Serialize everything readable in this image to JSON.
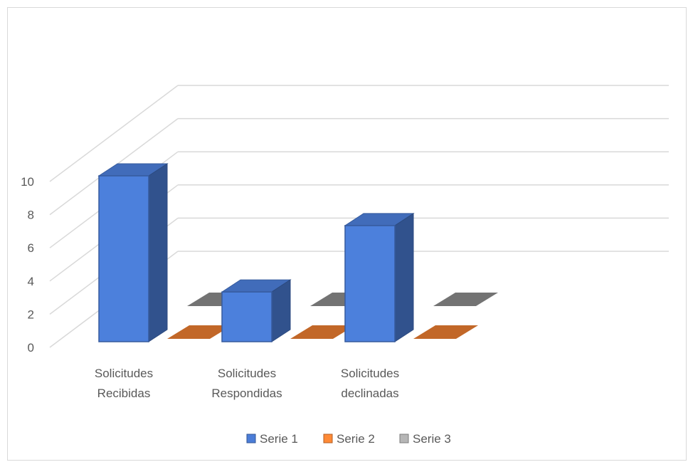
{
  "chart_data": {
    "type": "bar",
    "style": "3d-clustered-column",
    "categories": [
      "Solicitudes Recibidas",
      "Solicitudes Respondidas",
      "Solicitudes declinadas"
    ],
    "category_lines": [
      [
        "Solicitudes",
        "Recibidas"
      ],
      [
        "Solicitudes",
        "Respondidas"
      ],
      [
        "Solicitudes",
        "declinadas"
      ]
    ],
    "series": [
      {
        "name": "Serie 1",
        "values": [
          10,
          3,
          7
        ],
        "color": "#4472c4"
      },
      {
        "name": "Serie 2",
        "values": [
          0,
          0,
          0
        ],
        "color": "#ed7d31"
      },
      {
        "name": "Serie 3",
        "values": [
          0,
          0,
          0
        ],
        "color": "#a5a5a5"
      }
    ],
    "ylim": [
      0,
      10
    ],
    "yticks": [
      "0",
      "2",
      "4",
      "6",
      "8",
      "10"
    ],
    "title": "",
    "xlabel": "",
    "ylabel": "",
    "grid": true,
    "legend_position": "bottom"
  }
}
